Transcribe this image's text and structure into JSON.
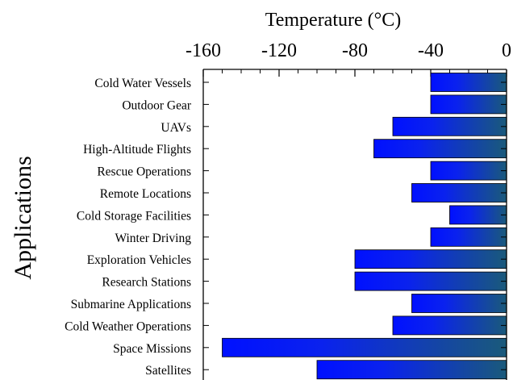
{
  "chart_data": {
    "type": "bar",
    "orientation": "horizontal",
    "title": "",
    "xlabel": "Temperature (°C)",
    "ylabel": "Applications",
    "xlim": [
      -160,
      0
    ],
    "x_ticks": [
      -160,
      -120,
      -80,
      -40,
      0
    ],
    "x_axis_position": "top",
    "grid": false,
    "legend": "none",
    "categories": [
      "Cold Water Vessels",
      "Outdoor Gear",
      "UAVs",
      "High-Altitude Flights",
      "Rescue Operations",
      "Remote Locations",
      "Cold Storage Facilities",
      "Winter Driving",
      "Exploration Vehicles",
      "Research Stations",
      "Submarine Applications",
      "Cold Weather Operations",
      "Space Missions",
      "Satellites"
    ],
    "values": [
      -40,
      -40,
      -60,
      -70,
      -40,
      -50,
      -30,
      -40,
      -80,
      -80,
      -50,
      -60,
      -150,
      -100
    ],
    "colors": {
      "gradient_start": "#0010ff",
      "gradient_end": "#1a5a7a",
      "bar_edge": "#000000"
    }
  }
}
